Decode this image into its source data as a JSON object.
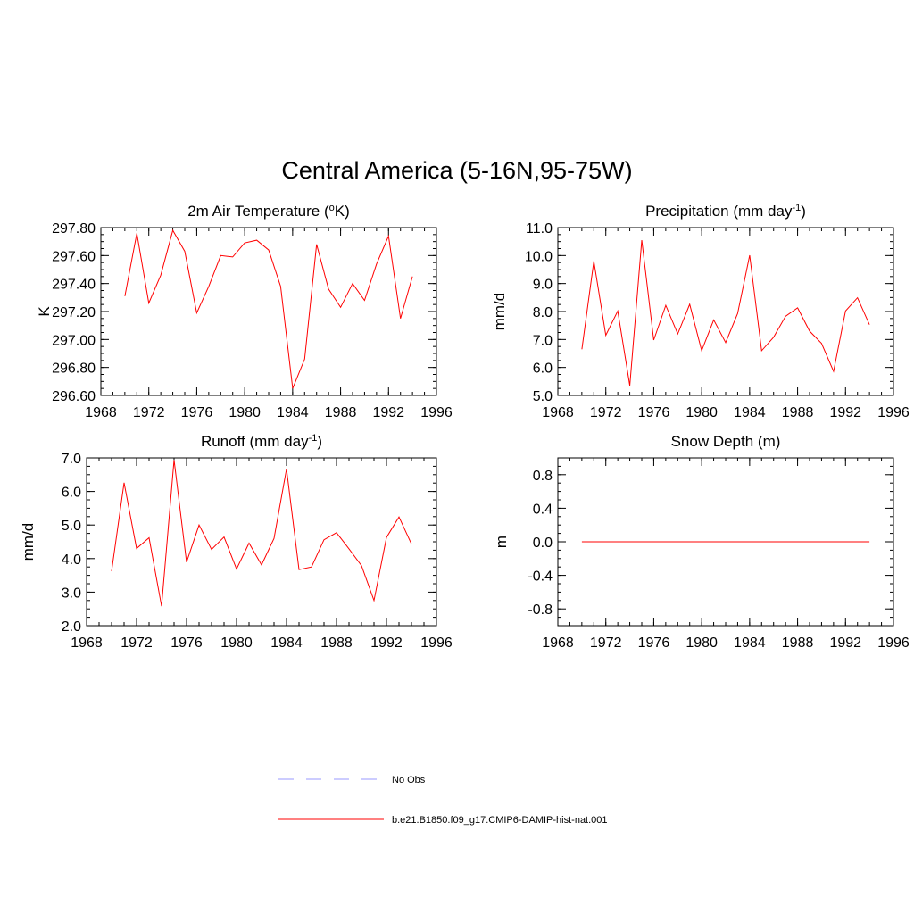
{
  "title": "Central America (5-16N,95-75W)",
  "colors": {
    "model": "#ff0000",
    "obs": "#9999ff",
    "axis": "#000000"
  },
  "chart_data": [
    {
      "type": "line",
      "title": "2m Air Temperature (",
      "title_sup": "o",
      "title_end": "K)",
      "ylabel": "K",
      "xlim": [
        1968,
        1996
      ],
      "ylim": [
        296.6,
        297.8
      ],
      "xticks": [
        1968,
        1972,
        1976,
        1980,
        1984,
        1988,
        1992,
        1996
      ],
      "yticks": [
        296.6,
        296.8,
        297.0,
        297.2,
        297.4,
        297.6,
        297.8
      ],
      "ytick_labels": [
        "296.60",
        "296.80",
        "297.00",
        "297.20",
        "297.40",
        "297.60",
        "297.80"
      ],
      "x": [
        1970,
        1971,
        1972,
        1973,
        1974,
        1975,
        1976,
        1977,
        1978,
        1979,
        1980,
        1981,
        1982,
        1983,
        1984,
        1985,
        1986,
        1987,
        1988,
        1989,
        1990,
        1991,
        1992,
        1993,
        1994
      ],
      "series": [
        {
          "values": [
            297.31,
            297.76,
            297.26,
            297.46,
            297.78,
            297.63,
            297.19,
            297.38,
            297.6,
            297.59,
            297.69,
            297.71,
            297.64,
            297.38,
            296.65,
            296.86,
            297.68,
            297.36,
            297.23,
            297.4,
            297.28,
            297.54,
            297.74,
            297.15,
            297.45
          ]
        }
      ]
    },
    {
      "type": "line",
      "title": "Precipitation (mm day",
      "title_sup": "-1",
      "title_end": ")",
      "ylabel": "mm/d",
      "xlim": [
        1968,
        1996
      ],
      "ylim": [
        5.0,
        11.0
      ],
      "xticks": [
        1968,
        1972,
        1976,
        1980,
        1984,
        1988,
        1992,
        1996
      ],
      "yticks": [
        5,
        6,
        7,
        8,
        9,
        10,
        11
      ],
      "ytick_labels": [
        "5.0",
        "6.0",
        "7.0",
        "8.0",
        "9.0",
        "10.0",
        "11.0"
      ],
      "x": [
        1970,
        1971,
        1972,
        1973,
        1974,
        1975,
        1976,
        1977,
        1978,
        1979,
        1980,
        1981,
        1982,
        1983,
        1984,
        1985,
        1986,
        1987,
        1988,
        1989,
        1990,
        1991,
        1992,
        1993,
        1994
      ],
      "series": [
        {
          "values": [
            6.65,
            9.8,
            7.15,
            8.02,
            5.35,
            10.55,
            6.98,
            8.22,
            7.2,
            8.26,
            6.6,
            7.7,
            6.89,
            7.93,
            10.01,
            6.6,
            7.08,
            7.83,
            8.13,
            7.3,
            6.86,
            5.86,
            8.02,
            8.49,
            7.53
          ]
        }
      ]
    },
    {
      "type": "line",
      "title": "Runoff (mm day",
      "title_sup": "-1",
      "title_end": ")",
      "ylabel": "mm/d",
      "xlim": [
        1968,
        1996
      ],
      "ylim": [
        2.0,
        7.0
      ],
      "xticks": [
        1968,
        1972,
        1976,
        1980,
        1984,
        1988,
        1992,
        1996
      ],
      "yticks": [
        2,
        3,
        4,
        5,
        6,
        7
      ],
      "ytick_labels": [
        "2.0",
        "3.0",
        "4.0",
        "5.0",
        "6.0",
        "7.0"
      ],
      "x": [
        1970,
        1971,
        1972,
        1973,
        1974,
        1975,
        1976,
        1977,
        1978,
        1979,
        1980,
        1981,
        1982,
        1983,
        1984,
        1985,
        1986,
        1987,
        1988,
        1989,
        1990,
        1991,
        1992,
        1993,
        1994
      ],
      "series": [
        {
          "values": [
            3.62,
            6.26,
            4.3,
            4.62,
            2.58,
            6.94,
            3.89,
            5.0,
            4.27,
            4.64,
            3.69,
            4.46,
            3.81,
            4.6,
            6.67,
            3.67,
            3.75,
            4.56,
            4.77,
            4.29,
            3.79,
            2.75,
            4.63,
            5.24,
            4.43
          ]
        }
      ]
    },
    {
      "type": "line",
      "title": "Snow Depth (m)",
      "title_sup": "",
      "title_end": "",
      "ylabel": "m",
      "xlim": [
        1968,
        1996
      ],
      "ylim": [
        -1.0,
        1.0
      ],
      "xticks": [
        1968,
        1972,
        1976,
        1980,
        1984,
        1988,
        1992,
        1996
      ],
      "yticks": [
        -0.8,
        -0.4,
        0.0,
        0.4,
        0.8
      ],
      "ytick_labels": [
        "-0.8",
        "-0.4",
        "0.0",
        "0.4",
        "0.8"
      ],
      "x": [
        1970,
        1971,
        1972,
        1973,
        1974,
        1975,
        1976,
        1977,
        1978,
        1979,
        1980,
        1981,
        1982,
        1983,
        1984,
        1985,
        1986,
        1987,
        1988,
        1989,
        1990,
        1991,
        1992,
        1993,
        1994
      ],
      "series": [
        {
          "values": [
            0,
            0,
            0,
            0,
            0,
            0,
            0,
            0,
            0,
            0,
            0,
            0,
            0,
            0,
            0,
            0,
            0,
            0,
            0,
            0,
            0,
            0,
            0,
            0,
            0
          ]
        }
      ]
    }
  ],
  "legend": [
    {
      "label": "No Obs",
      "style": "dashed",
      "color": "#9999ff"
    },
    {
      "label": "b.e21.B1850.f09_g17.CMIP6-DAMIP-hist-nat.001",
      "style": "solid",
      "color": "#ff0000"
    }
  ]
}
